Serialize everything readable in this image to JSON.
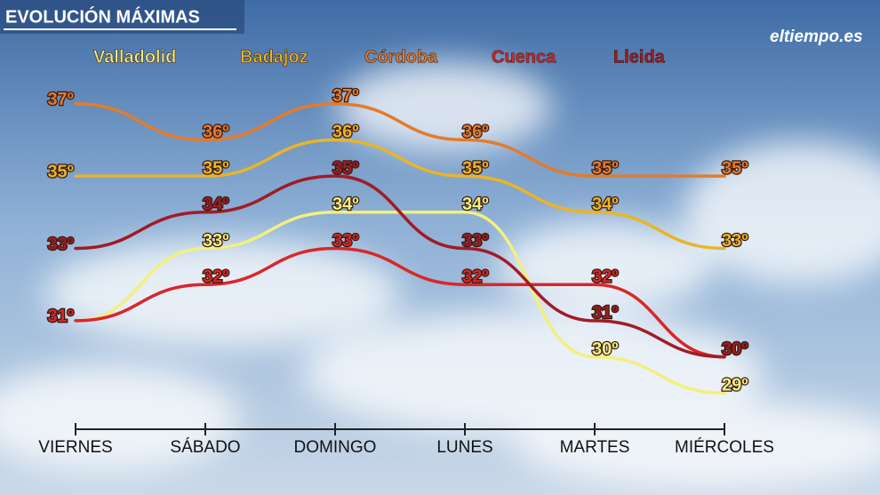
{
  "chart_data": {
    "type": "line",
    "title": "EVOLUCIÓN MÁXIMAS",
    "logo": "eltiempo.es",
    "categories": [
      "VIERNES",
      "SÁBADO",
      "DOMINGO",
      "LUNES",
      "MARTES",
      "MIÉRCOLES"
    ],
    "ylim": [
      28,
      38
    ],
    "grid": false,
    "smooth": true,
    "series": [
      {
        "name": "Valladolid",
        "color": "#f2f07e",
        "values": [
          31,
          33,
          34,
          34,
          30,
          29
        ],
        "value_labels": [
          "31º",
          "33º",
          "34º",
          "34º",
          "30º",
          "29º"
        ]
      },
      {
        "name": "Badajoz",
        "color": "#e9b526",
        "values": [
          35,
          35,
          36,
          35,
          34,
          33
        ],
        "value_labels": [
          "35º",
          "35º",
          "36º",
          "35º",
          "34º",
          "33º"
        ]
      },
      {
        "name": "Córdoba",
        "color": "#e47b2c",
        "values": [
          37,
          36,
          37,
          36,
          35,
          35
        ],
        "value_labels": [
          "37º",
          "36º",
          "37º",
          "36º",
          "35º",
          "35º"
        ]
      },
      {
        "name": "Cuenca",
        "color": "#d8272a",
        "values": [
          31,
          32,
          33,
          32,
          32,
          30
        ],
        "value_labels": [
          "31º",
          "32º",
          "33º",
          "32º",
          "32º",
          "30º"
        ]
      },
      {
        "name": "Lleida",
        "color": "#a01c26",
        "values": [
          33,
          34,
          35,
          33,
          31,
          30
        ],
        "value_labels": [
          "33º",
          "34º",
          "35º",
          "33º",
          "31º",
          "30º"
        ]
      }
    ]
  }
}
